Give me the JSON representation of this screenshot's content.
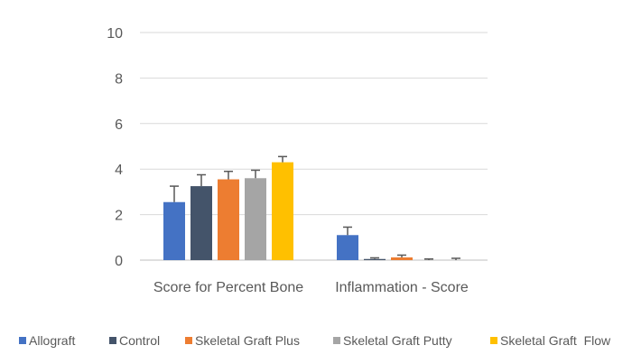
{
  "chart_data": {
    "type": "bar",
    "title": "",
    "xlabel": "",
    "ylabel": "",
    "categories": [
      "Score for Percent Bone",
      "Inflammation - Score"
    ],
    "ylim": [
      0,
      10
    ],
    "yticks": [
      0,
      2,
      4,
      6,
      8,
      10
    ],
    "grid": true,
    "legend_position": "bottom",
    "series": [
      {
        "name": "Allograft",
        "color": "#4472c4",
        "values": [
          2.55,
          1.1
        ],
        "errors": [
          0.7,
          0.35
        ]
      },
      {
        "name": "Control",
        "color": "#44546a",
        "values": [
          3.25,
          0.05
        ],
        "errors": [
          0.5,
          0.05
        ]
      },
      {
        "name": "Skeletal Graft Plus",
        "color": "#ed7d31",
        "values": [
          3.55,
          0.12
        ],
        "errors": [
          0.35,
          0.1
        ]
      },
      {
        "name": "Skeletal Graft Putty",
        "color": "#a5a5a5",
        "values": [
          3.6,
          0.0
        ],
        "errors": [
          0.35,
          0.05
        ]
      },
      {
        "name": "Skeletal Graft  Flow",
        "color": "#ffc000",
        "values": [
          4.3,
          0.0
        ],
        "errors": [
          0.25,
          0.08
        ]
      }
    ]
  }
}
